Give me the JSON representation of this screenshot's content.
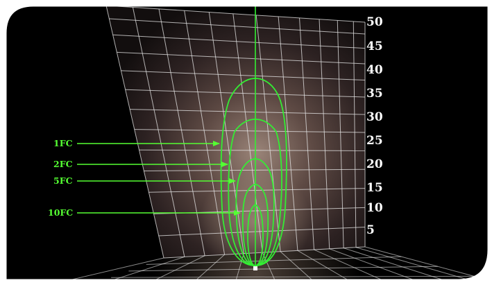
{
  "scale_labels": [
    "50",
    "45",
    "40",
    "35",
    "30",
    "25",
    "20",
    "15",
    "10",
    "5"
  ],
  "contours": [
    {
      "label": "1FC"
    },
    {
      "label": "2FC"
    },
    {
      "label": "5FC"
    },
    {
      "label": "10FC"
    }
  ],
  "colors": {
    "background": "#000000",
    "grid": "#e8e8e8",
    "contour": "#33ee33",
    "label": "#55ff33",
    "scale_text": "#ffffff"
  }
}
